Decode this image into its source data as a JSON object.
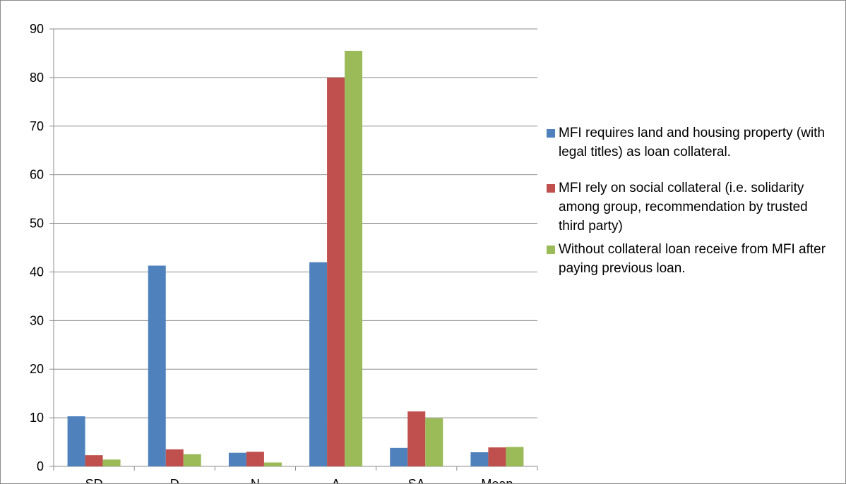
{
  "chart_data": {
    "type": "bar",
    "categories": [
      "SD",
      "D",
      "N",
      "A",
      "SA",
      "Mean"
    ],
    "series": [
      {
        "name": "MFI requires land and housing property (with legal titles) as loan collateral.",
        "color": "#4F81BD",
        "values": [
          10.3,
          41.3,
          2.8,
          42,
          3.8,
          2.9
        ]
      },
      {
        "name": "MFI rely on social collateral (i.e. solidarity among group, recommendation by trusted third party)",
        "color": "#C0504D",
        "values": [
          2.3,
          3.5,
          3.0,
          80,
          11.3,
          3.9
        ]
      },
      {
        "name": "Without collateral loan receive from MFI after paying previous loan.",
        "color": "#9BBB59",
        "values": [
          1.4,
          2.5,
          0.8,
          85.5,
          9.9,
          4.0
        ]
      }
    ],
    "yticks": [
      "0",
      "10",
      "20",
      "30",
      "40",
      "50",
      "60",
      "70",
      "80",
      "90"
    ],
    "ylim": [
      0,
      90
    ],
    "grid": true,
    "legend_position": "right"
  }
}
